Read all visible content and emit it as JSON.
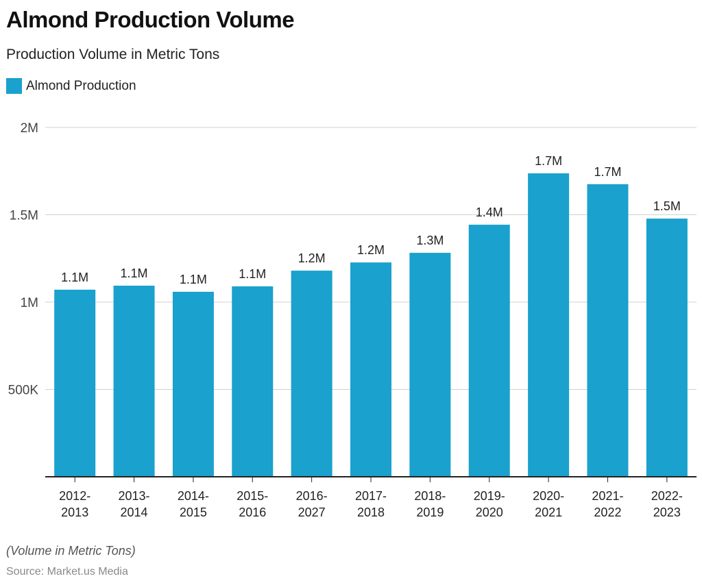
{
  "chart_data": {
    "type": "bar",
    "title": "Almond Production Volume",
    "subtitle": "Production Volume in Metric Tons",
    "categories": [
      [
        "2012-",
        "2013"
      ],
      [
        "2013-",
        "2014"
      ],
      [
        "2014-",
        "2015"
      ],
      [
        "2015-",
        "2016"
      ],
      [
        "2016-",
        "2027"
      ],
      [
        "2017-",
        "2018"
      ],
      [
        "2018-",
        "2019"
      ],
      [
        "2019-",
        "2020"
      ],
      [
        "2020-",
        "2021"
      ],
      [
        "2021-",
        "2022"
      ],
      [
        "2022-",
        "2023"
      ]
    ],
    "series": [
      {
        "name": "Almond Production",
        "color": "#1aa1cd",
        "values": [
          1071000,
          1094000,
          1059000,
          1090000,
          1180000,
          1227000,
          1282000,
          1443000,
          1737000,
          1675000,
          1478000
        ],
        "labels": [
          "1.1M",
          "1.1M",
          "1.1M",
          "1.1M",
          "1.2M",
          "1.2M",
          "1.3M",
          "1.4M",
          "1.7M",
          "1.7M",
          "1.5M"
        ]
      }
    ],
    "ylim": [
      0,
      2000000
    ],
    "yticks": [
      {
        "value": 500000,
        "label": "500K"
      },
      {
        "value": 1000000,
        "label": "1M"
      },
      {
        "value": 1500000,
        "label": "1.5M"
      },
      {
        "value": 2000000,
        "label": "2M"
      }
    ],
    "grid": true,
    "legend": "top-left",
    "note": "(Volume in Metric Tons)",
    "source": "Source: Market.us Media"
  }
}
